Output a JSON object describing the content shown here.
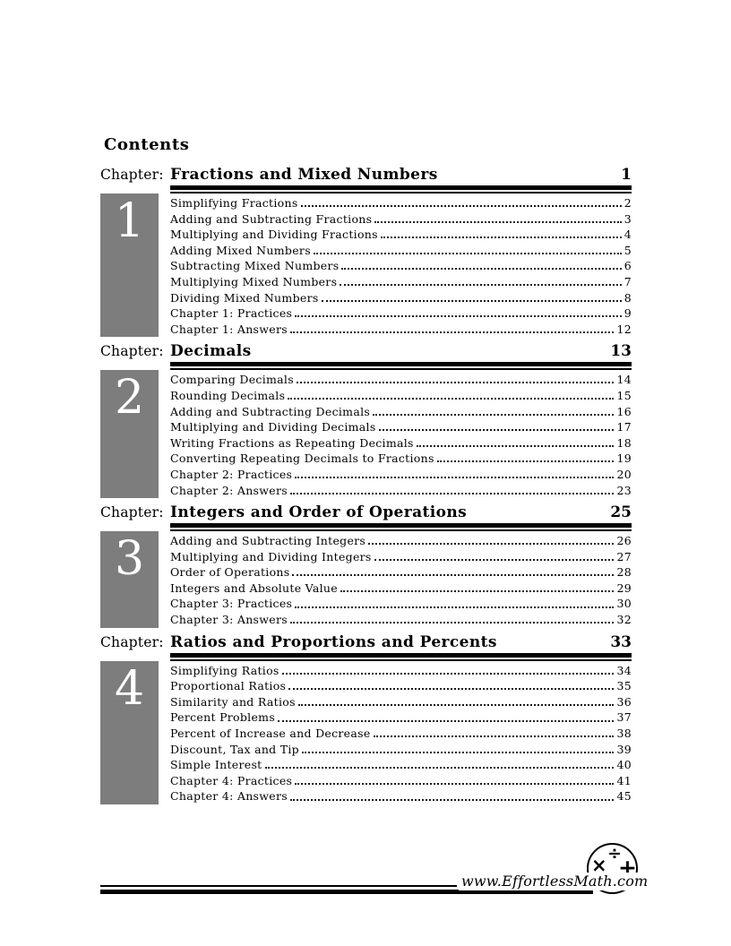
{
  "document": {
    "heading": "Contents",
    "chapter_label": "Chapter:"
  },
  "chapters": [
    {
      "number": "1",
      "title": "Fractions and Mixed Numbers",
      "page": "1",
      "items": [
        {
          "label": "Simplifying Fractions",
          "page": "2"
        },
        {
          "label": "Adding and Subtracting Fractions",
          "page": "3"
        },
        {
          "label": "Multiplying and Dividing Fractions",
          "page": "4"
        },
        {
          "label": "Adding Mixed Numbers",
          "page": "5"
        },
        {
          "label": "Subtracting Mixed Numbers",
          "page": "6"
        },
        {
          "label": "Multiplying Mixed Numbers",
          "page": "7"
        },
        {
          "label": "Dividing Mixed Numbers",
          "page": "8"
        },
        {
          "label": "Chapter 1: Practices",
          "page": "9"
        },
        {
          "label": "Chapter 1: Answers",
          "page": "12"
        }
      ]
    },
    {
      "number": "2",
      "title": "Decimals",
      "page": "13",
      "items": [
        {
          "label": "Comparing Decimals",
          "page": "14"
        },
        {
          "label": "Rounding Decimals",
          "page": "15"
        },
        {
          "label": "Adding and Subtracting Decimals",
          "page": "16"
        },
        {
          "label": "Multiplying and Dividing Decimals",
          "page": "17"
        },
        {
          "label": "Writing Fractions as Repeating Decimals",
          "page": "18"
        },
        {
          "label": "Converting Repeating Decimals to Fractions",
          "page": "19"
        },
        {
          "label": "Chapter 2: Practices",
          "page": "20"
        },
        {
          "label": "Chapter 2: Answers",
          "page": "23"
        }
      ]
    },
    {
      "number": "3",
      "title": "Integers and Order of Operations",
      "page": "25",
      "items": [
        {
          "label": "Adding and Subtracting Integers",
          "page": "26"
        },
        {
          "label": "Multiplying and Dividing Integers",
          "page": "27"
        },
        {
          "label": "Order of Operations",
          "page": "28"
        },
        {
          "label": "Integers and Absolute Value",
          "page": "29"
        },
        {
          "label": "Chapter 3: Practices",
          "page": "30"
        },
        {
          "label": "Chapter 3: Answers",
          "page": "32"
        }
      ]
    },
    {
      "number": "4",
      "title": "Ratios and Proportions and Percents",
      "page": "33",
      "items": [
        {
          "label": "Simplifying Ratios",
          "page": "34"
        },
        {
          "label": "Proportional Ratios",
          "page": "35"
        },
        {
          "label": "Similarity and Ratios",
          "page": "36"
        },
        {
          "label": "Percent Problems",
          "page": "37"
        },
        {
          "label": "Percent of Increase and Decrease",
          "page": "38"
        },
        {
          "label": "Discount, Tax and Tip",
          "page": "39"
        },
        {
          "label": "Simple Interest",
          "page": "40"
        },
        {
          "label": "Chapter 4: Practices",
          "page": "41"
        },
        {
          "label": "Chapter 4: Answers",
          "page": "45"
        }
      ]
    }
  ],
  "footer": {
    "website": "www.EffortlessMath.com",
    "logo_symbols": {
      "times": "×",
      "divide": "÷",
      "plus": "+",
      "minus": "−"
    }
  },
  "colors": {
    "chapter_box_gray": "#7d7d7d",
    "ink": "#000000",
    "paper": "#ffffff"
  }
}
